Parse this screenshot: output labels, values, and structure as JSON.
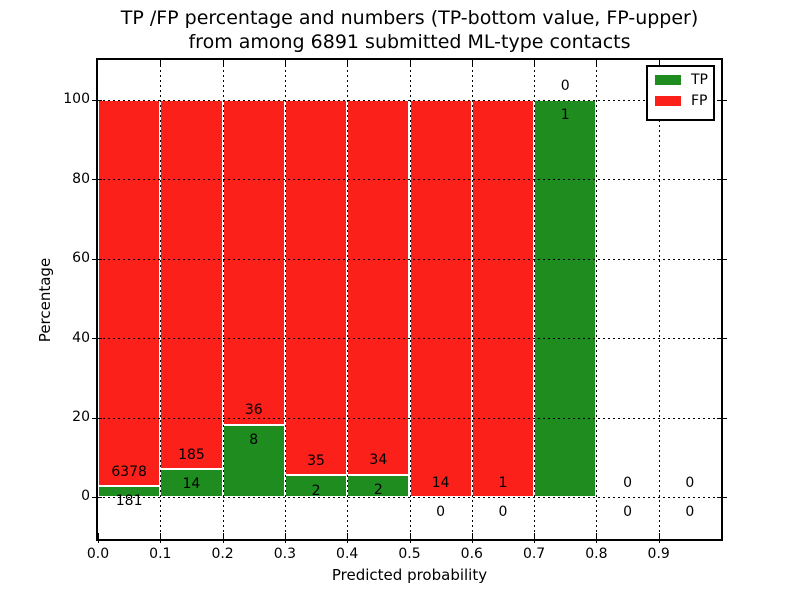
{
  "title": {
    "line1": "TP /FP percentage and numbers (TP-bottom value, FP-upper)",
    "line2": "from among 6891 submitted ML-type contacts"
  },
  "axes": {
    "xlabel": "Predicted probability",
    "ylabel": "Percentage",
    "x_tick_labels": [
      "0.0",
      "0.1",
      "0.2",
      "0.3",
      "0.4",
      "0.5",
      "0.6",
      "0.7",
      "0.8",
      "0.9"
    ],
    "y_tick_labels": [
      "0",
      "20",
      "40",
      "60",
      "80",
      "100"
    ]
  },
  "legend": {
    "items": [
      {
        "label": "TP",
        "color": "#1e8c1e"
      },
      {
        "label": "FP",
        "color": "#fb201a"
      }
    ]
  },
  "chart_data": {
    "type": "bar",
    "stacked": true,
    "title": "TP /FP percentage and numbers (TP-bottom value, FP-upper) from among 6891 submitted ML-type contacts",
    "xlabel": "Predicted probability",
    "ylabel": "Percentage",
    "total_contacts": 6891,
    "bin_edges": [
      0.0,
      0.1,
      0.2,
      0.3,
      0.4,
      0.5,
      0.6,
      0.7,
      0.8,
      0.9,
      1.0
    ],
    "series": [
      {
        "name": "TP",
        "color": "#1e8c1e",
        "counts": [
          181,
          14,
          8,
          2,
          2,
          0,
          0,
          1,
          0,
          0
        ]
      },
      {
        "name": "FP",
        "color": "#fb201a",
        "counts": [
          6378,
          185,
          36,
          35,
          34,
          14,
          1,
          0,
          0,
          0
        ]
      }
    ],
    "tp_percent_of_bin": [
      2.76,
      7.04,
      18.18,
      5.41,
      5.56,
      0,
      0,
      100,
      0,
      0
    ],
    "bar_value_labels_tp": [
      "181",
      "14",
      "8",
      "2",
      "2",
      "0",
      "0",
      "1",
      "0",
      "0"
    ],
    "bar_value_labels_fp": [
      "6378",
      "185",
      "36",
      "35",
      "34",
      "14",
      "1",
      "0",
      "0",
      "0"
    ],
    "xlim": [
      0.0,
      1.0
    ],
    "ylim": [
      -10.6,
      110.1
    ],
    "y_ticks": [
      0,
      20,
      40,
      60,
      80,
      100
    ],
    "x_ticks": [
      0.0,
      0.1,
      0.2,
      0.3,
      0.4,
      0.5,
      0.6,
      0.7,
      0.8,
      0.9
    ],
    "grid": "dotted",
    "legend_position": "upper right"
  }
}
